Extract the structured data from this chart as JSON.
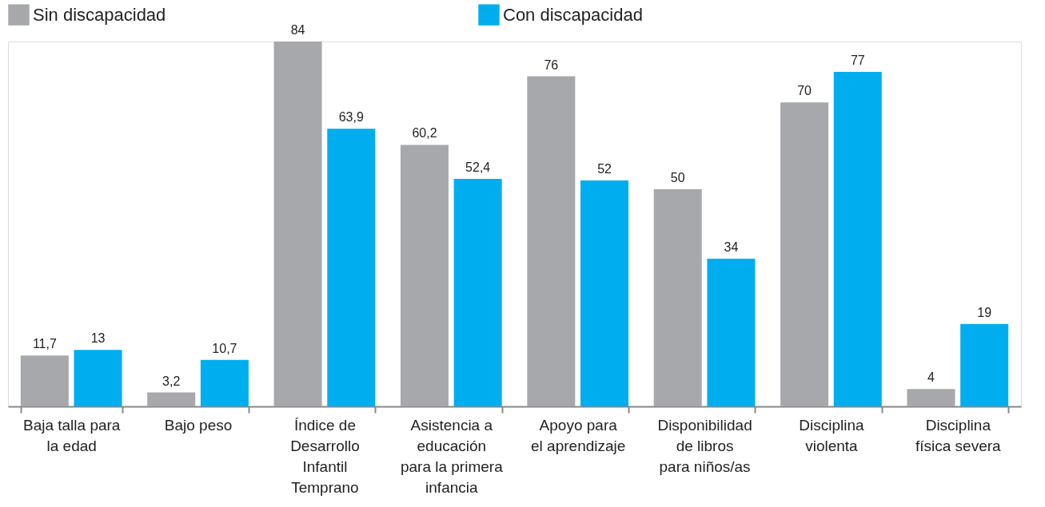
{
  "chart_data": {
    "type": "bar",
    "categories": [
      "Baja talla para\nla edad",
      "Bajo peso",
      "Índice de\nDesarrollo\nInfantil\nTemprano",
      "Asistencia a\neducación\npara la primera\ninfancia",
      "Apoyo para\nel aprendizaje",
      "Disponibilidad\nde libros\npara niños/as",
      "Disciplina\nviolenta",
      "Disciplina\nfísica severa"
    ],
    "series": [
      {
        "name": "Sin discapacidad",
        "color": "#a7a8ab",
        "values": [
          11.7,
          3.2,
          84,
          60.2,
          76,
          50,
          70,
          4
        ],
        "value_labels": [
          "11,7",
          "3,2",
          "84",
          "60,2",
          "76",
          "50",
          "70",
          "4"
        ]
      },
      {
        "name": "Con discapacidad",
        "color": "#00aeef",
        "values": [
          13,
          10.7,
          63.9,
          52.4,
          52,
          34,
          77,
          19
        ],
        "value_labels": [
          "13",
          "10,7",
          "63,9",
          "52,4",
          "52",
          "34",
          "77",
          "19"
        ]
      }
    ],
    "legend": "top",
    "grid": false
  }
}
